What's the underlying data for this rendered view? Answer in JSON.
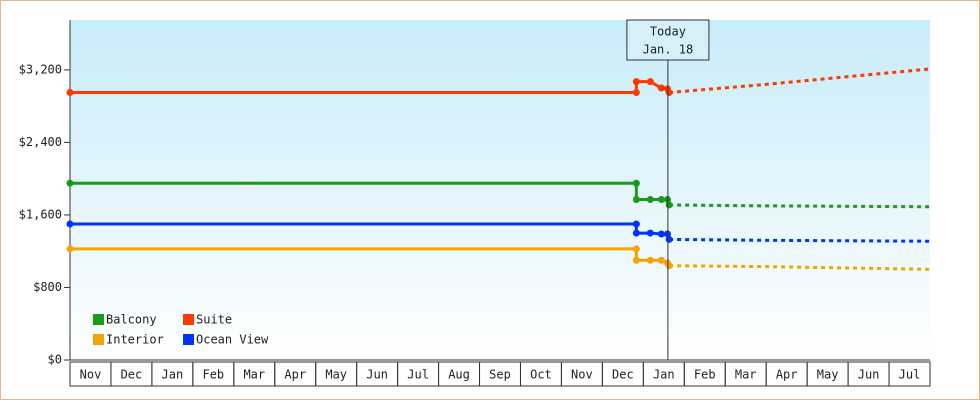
{
  "chart_data": {
    "type": "line",
    "today": {
      "x": 14.6,
      "label": [
        "Today",
        "Jan. 18"
      ]
    },
    "x": [
      0,
      13.83,
      13.83,
      14.17,
      14.44,
      14.59,
      14.63
    ],
    "forecast_x": [
      14.63,
      17,
      21
    ],
    "series": [
      {
        "name": "Balcony",
        "color": "#1a9a1a",
        "values": [
          1950,
          1950,
          1770,
          1770,
          1770,
          1770,
          1710
        ],
        "forecast": [
          1710,
          1700,
          1690
        ]
      },
      {
        "name": "Suite",
        "color": "#ff3a00",
        "values": [
          2950,
          2950,
          3070,
          3070,
          3000,
          2990,
          2950
        ],
        "forecast": [
          2950,
          3040,
          3210
        ]
      },
      {
        "name": "Interior",
        "color": "#f5a300",
        "values": [
          1225,
          1225,
          1100,
          1100,
          1100,
          1070,
          1040
        ],
        "forecast": [
          1040,
          1030,
          1000
        ]
      },
      {
        "name": "Ocean View",
        "color": "#0033ff",
        "values": [
          1500,
          1500,
          1400,
          1400,
          1390,
          1390,
          1330
        ],
        "forecast": [
          1330,
          1320,
          1310
        ]
      }
    ],
    "xlim": [
      0,
      21
    ],
    "xticks": [
      {
        "value": 0.5,
        "label": "Nov"
      },
      {
        "value": 1.5,
        "label": "Dec"
      },
      {
        "value": 2.5,
        "label": "Jan"
      },
      {
        "value": 3.5,
        "label": "Feb"
      },
      {
        "value": 4.5,
        "label": "Mar"
      },
      {
        "value": 5.5,
        "label": "Apr"
      },
      {
        "value": 6.5,
        "label": "May"
      },
      {
        "value": 7.5,
        "label": "Jun"
      },
      {
        "value": 8.5,
        "label": "Jul"
      },
      {
        "value": 9.5,
        "label": "Aug"
      },
      {
        "value": 10.5,
        "label": "Sep"
      },
      {
        "value": 11.5,
        "label": "Oct"
      },
      {
        "value": 12.5,
        "label": "Nov"
      },
      {
        "value": 13.5,
        "label": "Dec"
      },
      {
        "value": 14.5,
        "label": "Jan"
      },
      {
        "value": 15.5,
        "label": "Feb"
      },
      {
        "value": 16.5,
        "label": "Mar"
      },
      {
        "value": 17.5,
        "label": "Apr"
      },
      {
        "value": 18.5,
        "label": "May"
      },
      {
        "value": 19.5,
        "label": "Jun"
      },
      {
        "value": 20.5,
        "label": "Jul"
      }
    ],
    "ylim": [
      0,
      3750
    ],
    "yticks": [
      {
        "value": 0,
        "label": "$0"
      },
      {
        "value": 800,
        "label": "$800"
      },
      {
        "value": 1600,
        "label": "$1,600"
      },
      {
        "value": 2400,
        "label": "$2,400"
      },
      {
        "value": 3200,
        "label": "$3,200"
      }
    ],
    "legend": "lower left"
  }
}
